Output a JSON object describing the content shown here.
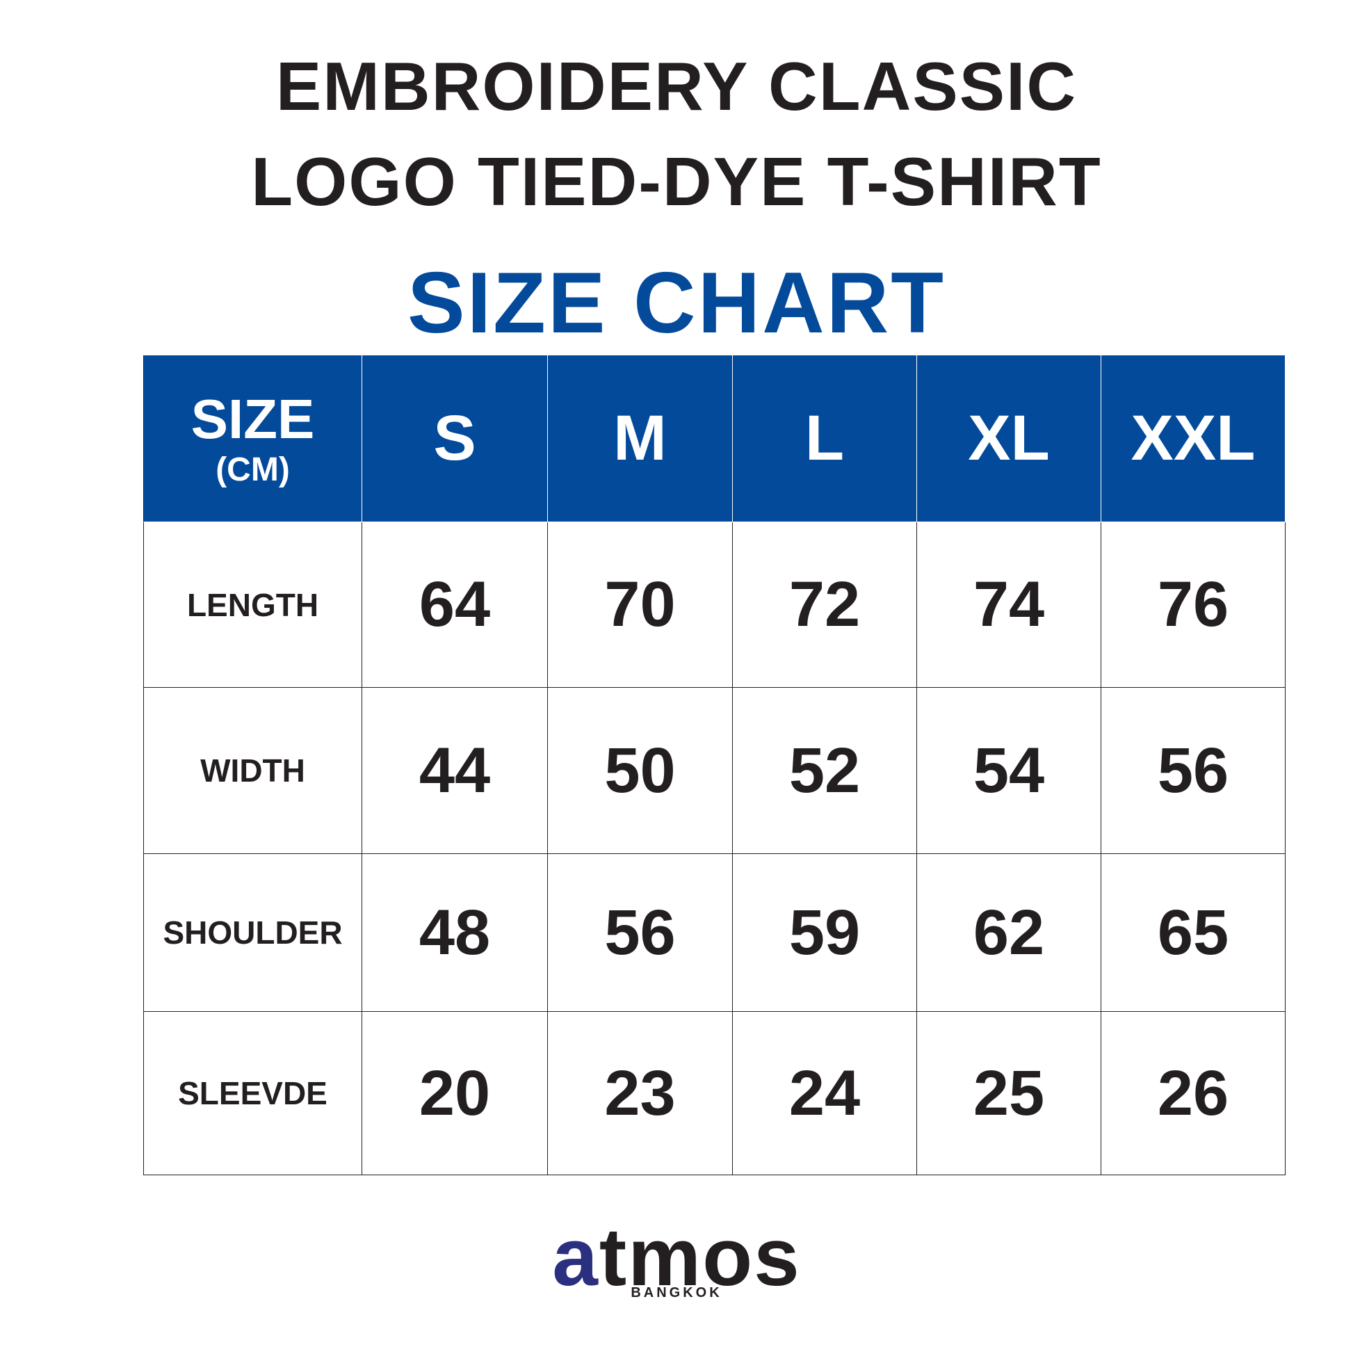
{
  "header": {
    "title_line1": "EMBROIDERY CLASSIC",
    "title_line2": "LOGO TIED-DYE T-SHIRT",
    "subtitle": "SIZE CHART"
  },
  "table": {
    "corner": "SIZE",
    "corner_unit": "(CM)",
    "sizes": [
      "S",
      "M",
      "L",
      "XL",
      "XXL"
    ],
    "rows": [
      [
        "LENGTH",
        "64",
        "70",
        "72",
        "74",
        "76"
      ],
      [
        "WIDTH",
        "44",
        "50",
        "52",
        "54",
        "56"
      ],
      [
        "SHOULDER",
        "48",
        "56",
        "59",
        "62",
        "65"
      ],
      [
        "SLEEVDE",
        "20",
        "23",
        "24",
        "25",
        "26"
      ]
    ]
  },
  "footer": {
    "brand": "atmos",
    "location": "BANGKOK"
  }
}
